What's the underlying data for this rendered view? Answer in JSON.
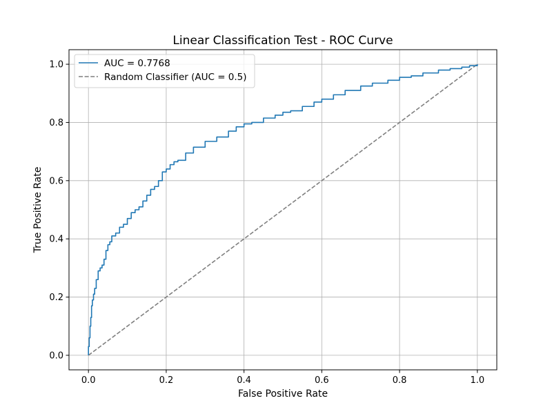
{
  "chart_data": {
    "type": "line",
    "title": "Linear Classification Test - ROC Curve",
    "xlabel": "False Positive Rate",
    "ylabel": "True Positive Rate",
    "xlim": [
      -0.05,
      1.05
    ],
    "ylim": [
      -0.05,
      1.05
    ],
    "xticks": [
      0.0,
      0.2,
      0.4,
      0.6,
      0.8,
      1.0
    ],
    "yticks": [
      0.0,
      0.2,
      0.4,
      0.6,
      0.8,
      1.0
    ],
    "xtick_labels": [
      "0.0",
      "0.2",
      "0.4",
      "0.6",
      "0.8",
      "1.0"
    ],
    "ytick_labels": [
      "0.0",
      "0.2",
      "0.4",
      "0.6",
      "0.8",
      "1.0"
    ],
    "grid": true,
    "legend_position": "top-left",
    "series": [
      {
        "name": "AUC = 0.7768",
        "color": "#1f77b4",
        "style": "solid",
        "step": true,
        "x": [
          0.0,
          0.0,
          0.002,
          0.004,
          0.006,
          0.008,
          0.01,
          0.013,
          0.016,
          0.02,
          0.025,
          0.03,
          0.035,
          0.04,
          0.045,
          0.05,
          0.055,
          0.06,
          0.07,
          0.08,
          0.09,
          0.1,
          0.11,
          0.12,
          0.13,
          0.14,
          0.15,
          0.16,
          0.17,
          0.18,
          0.19,
          0.2,
          0.21,
          0.22,
          0.23,
          0.25,
          0.27,
          0.3,
          0.33,
          0.36,
          0.38,
          0.4,
          0.42,
          0.45,
          0.48,
          0.5,
          0.52,
          0.55,
          0.58,
          0.6,
          0.63,
          0.66,
          0.7,
          0.73,
          0.77,
          0.8,
          0.83,
          0.86,
          0.9,
          0.93,
          0.96,
          0.98,
          1.0
        ],
        "y": [
          0.0,
          0.03,
          0.06,
          0.1,
          0.13,
          0.17,
          0.19,
          0.21,
          0.23,
          0.26,
          0.29,
          0.3,
          0.31,
          0.33,
          0.36,
          0.38,
          0.39,
          0.41,
          0.42,
          0.44,
          0.45,
          0.47,
          0.49,
          0.5,
          0.51,
          0.53,
          0.55,
          0.57,
          0.58,
          0.6,
          0.63,
          0.64,
          0.655,
          0.665,
          0.67,
          0.695,
          0.715,
          0.735,
          0.75,
          0.77,
          0.785,
          0.795,
          0.8,
          0.815,
          0.825,
          0.835,
          0.84,
          0.855,
          0.87,
          0.88,
          0.895,
          0.91,
          0.925,
          0.935,
          0.945,
          0.955,
          0.96,
          0.97,
          0.98,
          0.985,
          0.99,
          0.995,
          1.0
        ]
      },
      {
        "name": "Random Classifier (AUC = 0.5)",
        "color": "#7f7f7f",
        "style": "dashed",
        "step": false,
        "x": [
          0.0,
          1.0
        ],
        "y": [
          0.0,
          1.0
        ]
      }
    ]
  }
}
